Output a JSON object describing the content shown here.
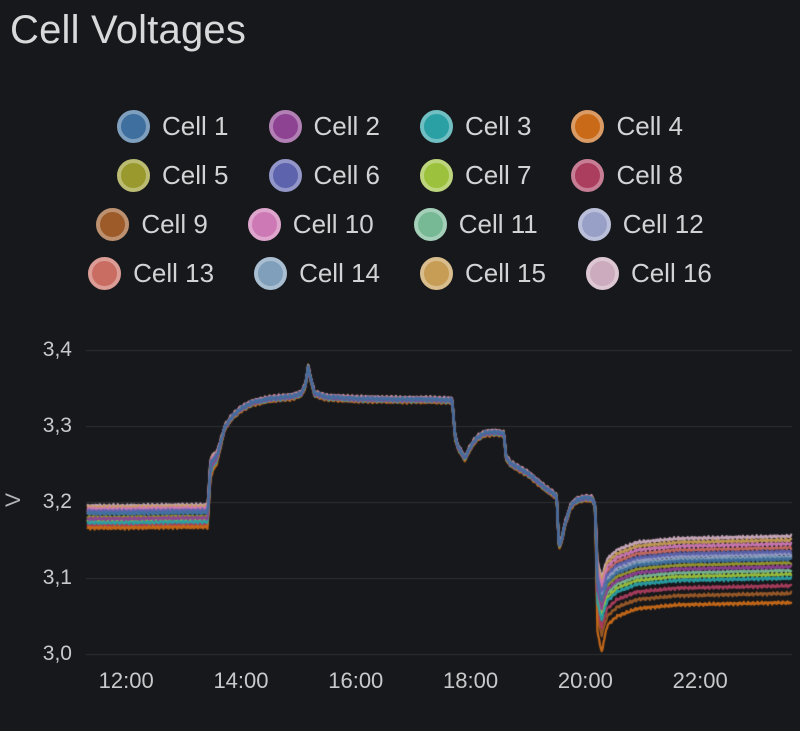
{
  "title": "Cell Voltages",
  "colors": {
    "background": "#17181b",
    "grid": "#2d3035",
    "title_text": "#d8d9da",
    "tick_text": "#c8c9cb",
    "legend_text": "#d2d3d5"
  },
  "chart_data": {
    "type": "line",
    "title": "Cell Voltages",
    "ylabel": "V",
    "xlabel": "",
    "legend_position": "top",
    "grid": "horizontal-only",
    "xlim": [
      11.3,
      23.6
    ],
    "ylim": [
      2.99,
      3.41
    ],
    "xticks": [
      {
        "v": 12,
        "label": "12:00"
      },
      {
        "v": 14,
        "label": "14:00"
      },
      {
        "v": 16,
        "label": "16:00"
      },
      {
        "v": 18,
        "label": "18:00"
      },
      {
        "v": 20,
        "label": "20:00"
      },
      {
        "v": 22,
        "label": "22:00"
      }
    ],
    "yticks": [
      {
        "v": 3.0,
        "label": "3,0"
      },
      {
        "v": 3.1,
        "label": "3,1"
      },
      {
        "v": 3.2,
        "label": "3,2"
      },
      {
        "v": 3.3,
        "label": "3,3"
      },
      {
        "v": 3.4,
        "label": "3,4"
      }
    ],
    "base_level": 3.18,
    "base_shape": [
      [
        11.33,
        3.18
      ],
      [
        12.0,
        3.18
      ],
      [
        13.0,
        3.181
      ],
      [
        13.42,
        3.181
      ],
      [
        13.47,
        3.245
      ],
      [
        13.52,
        3.252
      ],
      [
        13.58,
        3.258
      ],
      [
        13.72,
        3.298
      ],
      [
        13.85,
        3.312
      ],
      [
        14.0,
        3.322
      ],
      [
        14.2,
        3.33
      ],
      [
        14.5,
        3.335
      ],
      [
        14.9,
        3.338
      ],
      [
        15.05,
        3.342
      ],
      [
        15.12,
        3.352
      ],
      [
        15.17,
        3.376
      ],
      [
        15.22,
        3.36
      ],
      [
        15.28,
        3.342
      ],
      [
        15.5,
        3.337
      ],
      [
        16.0,
        3.335
      ],
      [
        16.8,
        3.334
      ],
      [
        17.3,
        3.334
      ],
      [
        17.68,
        3.333
      ],
      [
        17.73,
        3.285
      ],
      [
        17.78,
        3.272
      ],
      [
        17.9,
        3.257
      ],
      [
        18.0,
        3.272
      ],
      [
        18.1,
        3.283
      ],
      [
        18.25,
        3.29
      ],
      [
        18.45,
        3.291
      ],
      [
        18.58,
        3.289
      ],
      [
        18.62,
        3.258
      ],
      [
        18.7,
        3.25
      ],
      [
        19.0,
        3.237
      ],
      [
        19.3,
        3.218
      ],
      [
        19.45,
        3.21
      ],
      [
        19.5,
        3.207
      ],
      [
        19.54,
        3.14
      ],
      [
        19.58,
        3.148
      ],
      [
        19.65,
        3.172
      ],
      [
        19.75,
        3.195
      ],
      [
        19.85,
        3.202
      ],
      [
        20.0,
        3.205
      ],
      [
        20.12,
        3.204
      ],
      [
        20.17,
        3.195
      ]
    ],
    "spread": {
      "wide_until": 13.42,
      "narrow_from": 13.7,
      "mid_factor": 0.18,
      "split_at": 20.17
    },
    "tail_shape": {
      "drop_mid_t": 20.21,
      "min_t": 20.28,
      "recover": [
        [
          20.38,
          0.03
        ],
        [
          20.55,
          0.018
        ],
        [
          20.9,
          0.008
        ],
        [
          21.6,
          0.003
        ],
        [
          23.55,
          0.0
        ]
      ]
    },
    "series": [
      {
        "name": "Cell 1",
        "color": "#3f6f9e",
        "start": 3.185,
        "final": 3.125,
        "dip_min": 3.07
      },
      {
        "name": "Cell 2",
        "color": "#8d4292",
        "start": 3.178,
        "final": 3.115,
        "dip_min": 3.06
      },
      {
        "name": "Cell 3",
        "color": "#2aa0a5",
        "start": 3.173,
        "final": 3.1,
        "dip_min": 3.045
      },
      {
        "name": "Cell 4",
        "color": "#c96a18",
        "start": 3.166,
        "final": 3.068,
        "dip_min": 3.002
      },
      {
        "name": "Cell 5",
        "color": "#99992d",
        "start": 3.18,
        "final": 3.12,
        "dip_min": 3.065
      },
      {
        "name": "Cell 6",
        "color": "#5d63ad",
        "start": 3.188,
        "final": 3.135,
        "dip_min": 3.08
      },
      {
        "name": "Cell 7",
        "color": "#9cc13c",
        "start": 3.175,
        "final": 3.105,
        "dip_min": 3.05
      },
      {
        "name": "Cell 8",
        "color": "#ab3d5e",
        "start": 3.17,
        "final": 3.09,
        "dip_min": 3.035
      },
      {
        "name": "Cell 9",
        "color": "#9c5b28",
        "start": 3.168,
        "final": 3.08,
        "dip_min": 3.025
      },
      {
        "name": "Cell 10",
        "color": "#cd79b5",
        "start": 3.191,
        "final": 3.145,
        "dip_min": 3.09
      },
      {
        "name": "Cell 11",
        "color": "#77b895",
        "start": 3.177,
        "final": 3.11,
        "dip_min": 3.055
      },
      {
        "name": "Cell 12",
        "color": "#98a0c8",
        "start": 3.186,
        "final": 3.132,
        "dip_min": 3.077
      },
      {
        "name": "Cell 13",
        "color": "#c96d62",
        "start": 3.189,
        "final": 3.14,
        "dip_min": 3.085
      },
      {
        "name": "Cell 14",
        "color": "#7f9fba",
        "start": 3.187,
        "final": 3.128,
        "dip_min": 3.073
      },
      {
        "name": "Cell 15",
        "color": "#c79d55",
        "start": 3.193,
        "final": 3.15,
        "dip_min": 3.095
      },
      {
        "name": "Cell 16",
        "color": "#ccabbe",
        "start": 3.195,
        "final": 3.155,
        "dip_min": 3.1
      }
    ]
  }
}
